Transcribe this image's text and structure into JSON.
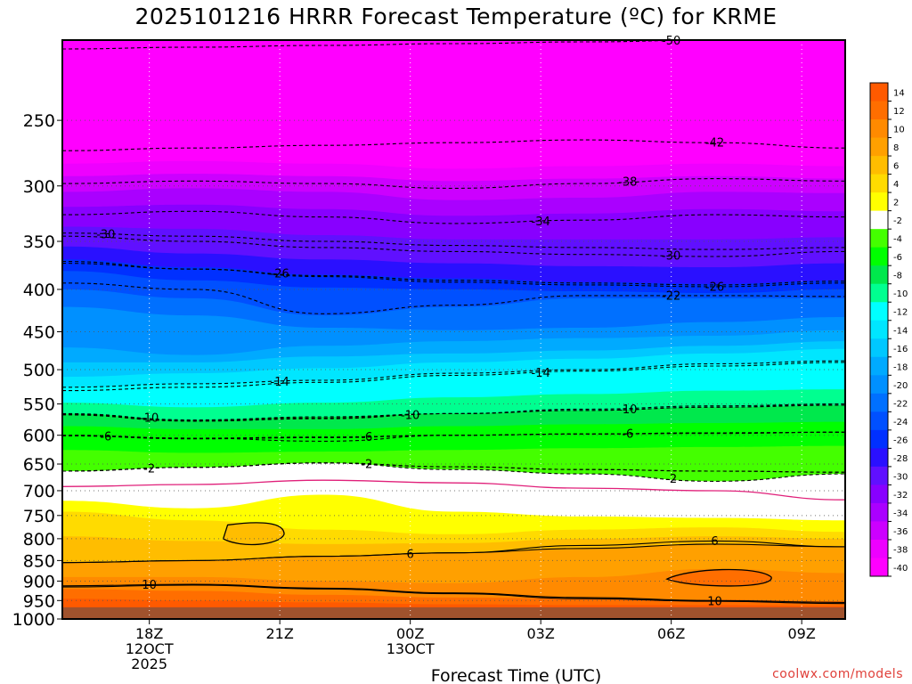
{
  "title": "2025101216 HRRR Forecast Temperature (ºC) for KRME",
  "credit": "coolwx.com/models",
  "chart_data": {
    "type": "heatmap",
    "title": "2025101216 HRRR Forecast Temperature (ºC) for KRME",
    "xlabel": "Forecast Time (UTC)",
    "ylabel": "",
    "x_range_hours_utc": [
      16,
      34
    ],
    "y_axis_scale": "log-pressure",
    "y_range": [
      1000,
      200
    ],
    "y_ticks": [
      "250",
      "300",
      "350",
      "400",
      "450",
      "500",
      "550",
      "600",
      "650",
      "700",
      "750",
      "800",
      "850",
      "900",
      "950",
      "1000"
    ],
    "x_ticks": [
      {
        "hour": 18,
        "lines": [
          "18Z",
          "12OCT",
          "2025"
        ]
      },
      {
        "hour": 21,
        "lines": [
          "21Z"
        ]
      },
      {
        "hour": 24,
        "lines": [
          "00Z",
          "13OCT"
        ]
      },
      {
        "hour": 27,
        "lines": [
          "03Z"
        ]
      },
      {
        "hour": 30,
        "lines": [
          "06Z"
        ]
      },
      {
        "hour": 33,
        "lines": [
          "09Z"
        ]
      }
    ],
    "grid": true,
    "colorbar": {
      "placement": "right",
      "labels": [
        "14",
        "12",
        "10",
        "8",
        "6",
        "4",
        "2",
        "-2",
        "-4",
        "-6",
        "-8",
        "-10",
        "-12",
        "-14",
        "-16",
        "-18",
        "-20",
        "-22",
        "-24",
        "-26",
        "-28",
        "-30",
        "-32",
        "-34",
        "-36",
        "-38",
        "-40"
      ],
      "colors": [
        "#ff5a00",
        "#ff6e00",
        "#ff8a00",
        "#ffa000",
        "#ffbd00",
        "#ffdb00",
        "#ffff00",
        "#ffffff",
        "#44ff00",
        "#00ff00",
        "#00e84c",
        "#00ff90",
        "#00ffff",
        "#00e6ff",
        "#00c8ff",
        "#00aaff",
        "#0090ff",
        "#0070ff",
        "#0050ff",
        "#0030ff",
        "#2a10ff",
        "#6010ff",
        "#8800ff",
        "#aa00ff",
        "#cc00ff",
        "#ee00ff",
        "#ff00ff"
      ]
    },
    "isotherms": [
      {
        "label": "-50",
        "p": [
          205,
          204,
          203,
          202,
          201,
          200,
          199
        ],
        "label_hour": 30
      },
      {
        "label": "-42",
        "p": [
          272,
          270,
          268,
          266,
          264,
          266,
          270
        ],
        "label_hour": 31
      },
      {
        "label": "-38",
        "p": [
          298,
          296,
          298,
          302,
          298,
          294,
          296
        ],
        "label_hour": 29
      },
      {
        "label": "-34",
        "p": [
          325,
          322,
          327,
          333,
          330,
          325,
          327
        ],
        "label_hour": 27
      },
      {
        "label": "-30",
        "p": [
          345,
          350,
          356,
          360,
          363,
          365,
          360
        ],
        "label_hour": 30
      },
      {
        "label": "-30",
        "p": [
          342,
          345,
          350,
          354,
          356,
          358,
          356
        ],
        "label_hour": 17
      },
      {
        "label": "-26",
        "p": [
          370,
          378,
          385,
          390,
          393,
          395,
          391
        ],
        "label_hour": 21
      },
      {
        "label": "-26",
        "p": [
          372,
          378,
          386,
          392,
          395,
          397,
          393
        ],
        "label_hour": 31
      },
      {
        "label": "-22",
        "p": [
          393,
          400,
          428,
          418,
          407,
          407,
          408
        ],
        "label_hour": 30
      },
      {
        "label": "-14",
        "p": [
          525,
          520,
          515,
          505,
          500,
          492,
          488
        ],
        "label_hour": 21
      },
      {
        "label": "-14",
        "p": [
          530,
          525,
          518,
          508,
          502,
          495,
          490
        ],
        "label_hour": 27
      },
      {
        "label": "-10",
        "p": [
          565,
          575,
          570,
          565,
          560,
          555,
          552
        ],
        "label_hour": 18
      },
      {
        "label": "-10",
        "p": [
          566,
          576,
          572,
          565,
          558,
          553,
          550
        ],
        "label_hour": 24
      },
      {
        "label": "-10",
        "p": [
          567,
          577,
          573,
          565,
          560,
          555,
          550
        ],
        "label_hour": 29
      },
      {
        "label": "-6",
        "p": [
          600,
          605,
          610,
          600,
          598,
          597,
          595
        ],
        "label_hour": 17
      },
      {
        "label": "-6",
        "p": [
          601,
          606,
          604,
          600,
          598,
          596,
          595
        ],
        "label_hour": 23
      },
      {
        "label": "-6",
        "p": [
          600,
          605,
          603,
          600,
          598,
          596,
          595
        ],
        "label_hour": 29
      },
      {
        "label": "-2",
        "p": [
          663,
          656,
          648,
          655,
          660,
          663,
          665
        ],
        "label_hour": 18
      },
      {
        "label": "-2",
        "p": [
          663,
          656,
          648,
          655,
          660,
          663,
          665
        ],
        "label_hour": 23
      },
      {
        "label": "-2",
        "p": [
          663,
          656,
          648,
          660,
          668,
          682,
          668
        ],
        "label_hour": 30
      },
      {
        "label": "6",
        "p": [
          855,
          850,
          840,
          832,
          822,
          812,
          818
        ],
        "label_hour": 24
      },
      {
        "label": "6",
        "p": [
          855,
          850,
          840,
          832,
          815,
          805,
          818
        ],
        "label_hour": 31
      },
      {
        "label": "10",
        "p": [
          912,
          908,
          918,
          930,
          942,
          950,
          955
        ],
        "label_hour": 18
      },
      {
        "label": "10",
        "p": [
          915,
          910,
          920,
          932,
          945,
          952,
          958
        ],
        "label_hour": 31
      }
    ],
    "freezing_level_hpa": [
      692,
      688,
      680,
      685,
      695,
      700,
      718
    ]
  }
}
